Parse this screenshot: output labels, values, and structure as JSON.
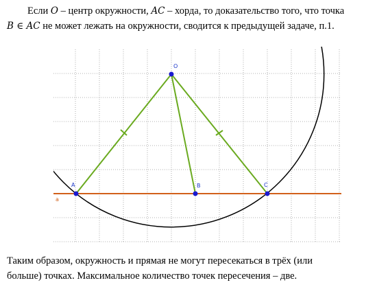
{
  "intro": {
    "lines": [
      [
        "Если ",
        {
          "math": "O"
        },
        " – центр окружности, ",
        {
          "math": "AC"
        },
        " – хорда, то доказательство того, что точка"
      ],
      [
        {
          "math": "B ∈ AC"
        },
        " не может лежать на окружности, сводится к предыдущей задаче, п.1."
      ]
    ]
  },
  "figure": {
    "labels": {
      "O": "O",
      "A": "A",
      "B": "B",
      "C": "C",
      "line": "a"
    }
  },
  "conclusion": {
    "lines": [
      "Таким образом, окружность и прямая не могут пересекаться в трёх (или",
      "больше) точках. Максимальное количество точек пересечения – две."
    ]
  }
}
